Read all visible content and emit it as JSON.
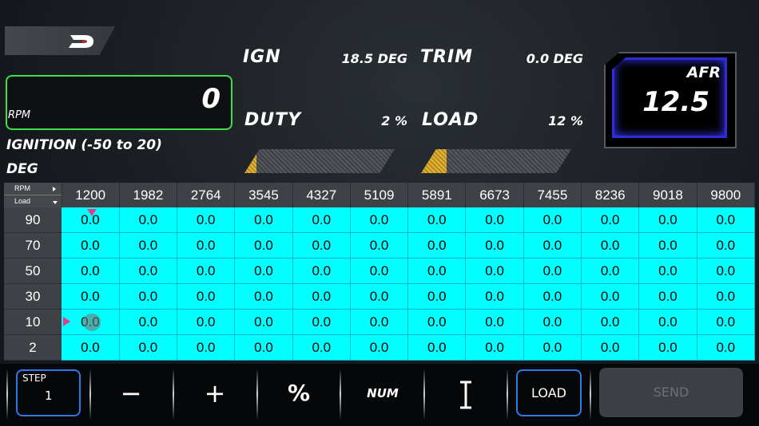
{
  "header": {
    "logo_icon": "brand-logo-icon"
  },
  "rpm": {
    "label": "RPM",
    "value": "0"
  },
  "map": {
    "title": "IGNITION (-50 to 20)",
    "unit": "DEG"
  },
  "readouts": {
    "ign_label": "IGN",
    "ign_value": "18.5 DEG",
    "trim_label": "TRIM",
    "trim_value": "0.0 DEG",
    "duty_label": "DUTY",
    "duty_value": "2 %",
    "load_label": "LOAD",
    "load_value": "12 %"
  },
  "bars": {
    "duty_fraction": 0.02,
    "load_fraction": 0.12
  },
  "afr": {
    "label": "AFR",
    "value": "12.5"
  },
  "table": {
    "corner_top": "RPM",
    "corner_bottom": "Load",
    "columns": [
      "1200",
      "1982",
      "2764",
      "3545",
      "4327",
      "5109",
      "5891",
      "6673",
      "7455",
      "8236",
      "9018",
      "9800"
    ],
    "rows": [
      {
        "load": "90",
        "cells": [
          "0.0",
          "0.0",
          "0.0",
          "0.0",
          "0.0",
          "0.0",
          "0.0",
          "0.0",
          "0.0",
          "0.0",
          "0.0",
          "0.0"
        ]
      },
      {
        "load": "70",
        "cells": [
          "0.0",
          "0.0",
          "0.0",
          "0.0",
          "0.0",
          "0.0",
          "0.0",
          "0.0",
          "0.0",
          "0.0",
          "0.0",
          "0.0"
        ]
      },
      {
        "load": "50",
        "cells": [
          "0.0",
          "0.0",
          "0.0",
          "0.0",
          "0.0",
          "0.0",
          "0.0",
          "0.0",
          "0.0",
          "0.0",
          "0.0",
          "0.0"
        ]
      },
      {
        "load": "30",
        "cells": [
          "0.0",
          "0.0",
          "0.0",
          "0.0",
          "0.0",
          "0.0",
          "0.0",
          "0.0",
          "0.0",
          "0.0",
          "0.0",
          "0.0"
        ]
      },
      {
        "load": "10",
        "cells": [
          "0.0",
          "0.0",
          "0.0",
          "0.0",
          "0.0",
          "0.0",
          "0.0",
          "0.0",
          "0.0",
          "0.0",
          "0.0",
          "0.0"
        ]
      },
      {
        "load": "2",
        "cells": [
          "0.0",
          "0.0",
          "0.0",
          "0.0",
          "0.0",
          "0.0",
          "0.0",
          "0.0",
          "0.0",
          "0.0",
          "0.0",
          "0.0"
        ]
      }
    ],
    "cell_color": "#00ffff",
    "marker_color": "#e63a8c"
  },
  "toolbar": {
    "step_label": "STEP",
    "step_value": "1",
    "minus_label": "−",
    "plus_label": "+",
    "percent_label": "%",
    "num_label": "NUM",
    "cursor_icon": "text-cursor-icon",
    "load_label": "LOAD",
    "send_label": "SEND",
    "accent": "#2f78e8"
  }
}
